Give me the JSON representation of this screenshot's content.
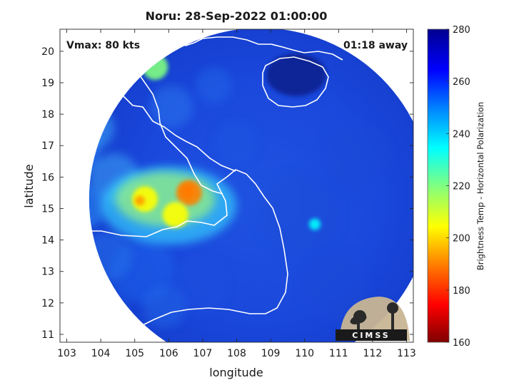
{
  "chart_data": {
    "type": "heatmap",
    "title": "Noru: 28-Sep-2022 01:00:00",
    "xlabel": "longitude",
    "ylabel": "latitude",
    "xlim": [
      102.8,
      113.2
    ],
    "ylim": [
      10.75,
      20.7
    ],
    "x_ticks": [
      103,
      104,
      105,
      106,
      107,
      108,
      109,
      110,
      111,
      112,
      113
    ],
    "y_ticks": [
      11,
      12,
      13,
      14,
      15,
      16,
      17,
      18,
      19,
      20
    ],
    "annotations": {
      "vmax": "Vmax: 80 kts",
      "time_away": "01:18 away"
    },
    "colorbar": {
      "label": "Brightness Temp - Horizontal Polarization",
      "range": [
        160,
        280
      ],
      "ticks": [
        160,
        180,
        200,
        220,
        240,
        260,
        280
      ],
      "colormap": [
        "#7f0000",
        "#ff0000",
        "#ff8000",
        "#ffff00",
        "#80ff80",
        "#00ffff",
        "#0080ff",
        "#0000ff",
        "#00008f"
      ]
    },
    "swath": {
      "center_lon": 108.7,
      "center_lat": 15.3,
      "shape": "circle"
    },
    "features": [
      {
        "name": "eye_region",
        "lon": 106.6,
        "lat": 15.5,
        "value": 195
      },
      {
        "name": "rainband",
        "lon": 105.3,
        "lat": 15.3,
        "value": 205
      },
      {
        "name": "rainband_south",
        "lon": 106.2,
        "lat": 14.8,
        "value": 210
      },
      {
        "name": "convection_north",
        "lon": 105.6,
        "lat": 19.5,
        "value": 215
      },
      {
        "name": "isolated_cell",
        "lon": 110.3,
        "lat": 14.5,
        "value": 235
      },
      {
        "name": "hainan_island",
        "lon": 109.7,
        "lat": 19.2,
        "value": 275
      }
    ],
    "grid": false,
    "legend": "none",
    "logo_text": "CIMSS"
  }
}
